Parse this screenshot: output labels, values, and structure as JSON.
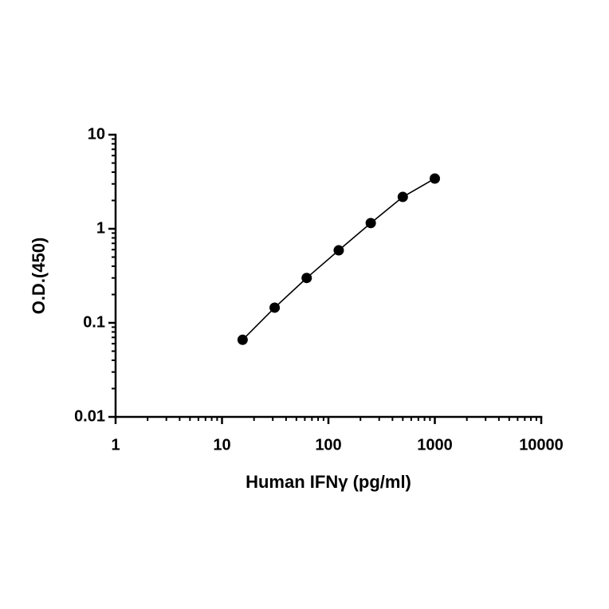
{
  "chart_data": {
    "type": "scatter",
    "x_label": "Human IFNγ (pg/ml)",
    "y_label": "O.D.(450)",
    "x_log": true,
    "y_log": true,
    "xlim": [
      1,
      10000
    ],
    "xticks": [
      1,
      10,
      100,
      1000,
      10000
    ],
    "ylim": [
      0.01,
      10
    ],
    "yticks": [
      0.01,
      0.1,
      1,
      10
    ],
    "connect": true,
    "series": [
      {
        "color": "#000000",
        "x": [
          15.625,
          31.25,
          62.5,
          125,
          250,
          500,
          1000
        ],
        "values": [
          0.066,
          0.145,
          0.3,
          0.59,
          1.15,
          2.18,
          3.42
        ]
      }
    ]
  }
}
